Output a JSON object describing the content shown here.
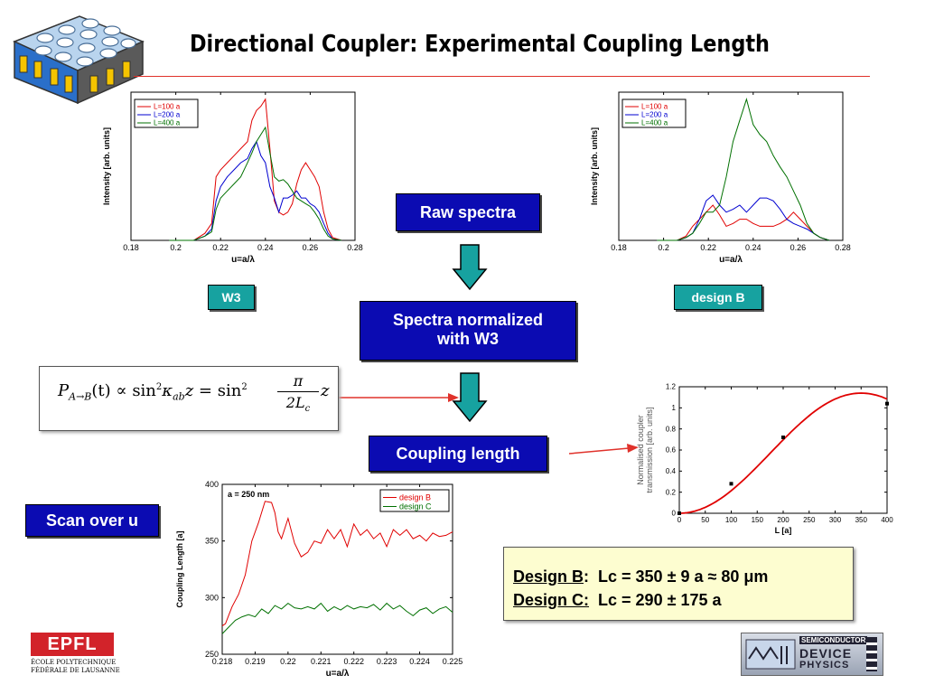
{
  "title": "Directional Coupler: Experimental Coupling Length",
  "flow": {
    "raw_spectra": "Raw spectra",
    "normalized_line1": "Spectra normalized",
    "normalized_line2": "with W3",
    "coupling_length": "Coupling length",
    "scan_over_u": "Scan over u"
  },
  "tags": {
    "w3": "W3",
    "design_b": "design B"
  },
  "formula": {
    "lhs": "P",
    "lhs_sub": "A→B",
    "t": "(t)",
    "propto": "∝",
    "sin": "sin",
    "sq": "2",
    "kappa": "κ",
    "kappa_sub": "ab",
    "z": "z",
    "eq": "=",
    "pi": "π",
    "den": "2L",
    "den_sub": "c"
  },
  "results": {
    "b_label": "Design B",
    "b_value": "Lc = 350 ± 9 a ≈ 80 μm",
    "c_label": "Design C:",
    "c_value": "Lc = 290 ± 175 a"
  },
  "logos": {
    "epfl_text1": "ÉCOLE POLYTECHNIQUE",
    "epfl_text2": "FÉDÉRALE DE LAUSANNE",
    "sdp_text1": "SEMICONDUCTOR",
    "sdp_text2": "DEVICE",
    "sdp_text3": "PHYSICS"
  },
  "colors": {
    "title_rule": "#e0322b",
    "box_blue": "#0b0bb2",
    "box_teal": "#17a2a0",
    "result_bg": "#fdfdd0"
  },
  "chart_data": [
    {
      "type": "line",
      "xlabel": "u=a/λ",
      "ylabel": "Intensity [arb. units]",
      "xlim": [
        0.18,
        0.28
      ],
      "xticks": [
        "0.18",
        "0.2",
        "0.22",
        "0.24",
        "0.26",
        "0.28"
      ],
      "legend": "top-left",
      "series": [
        {
          "name": "L=100 a",
          "color": "#e00000",
          "x": [
            0.197,
            0.208,
            0.213,
            0.216,
            0.218,
            0.22,
            0.223,
            0.226,
            0.229,
            0.232,
            0.234,
            0.236,
            0.238,
            0.24,
            0.242,
            0.244,
            0.246,
            0.248,
            0.25,
            0.252,
            0.254,
            0.256,
            0.258,
            0.26,
            0.262,
            0.264,
            0.266,
            0.268,
            0.27,
            0.274
          ],
          "y": [
            0.0,
            0.0,
            0.05,
            0.12,
            0.45,
            0.5,
            0.55,
            0.6,
            0.65,
            0.7,
            0.85,
            0.92,
            0.95,
            1.0,
            0.65,
            0.28,
            0.2,
            0.18,
            0.2,
            0.26,
            0.4,
            0.5,
            0.55,
            0.5,
            0.45,
            0.38,
            0.2,
            0.08,
            0.02,
            0.0
          ]
        },
        {
          "name": "L=200 a",
          "color": "#0000d0",
          "x": [
            0.197,
            0.208,
            0.213,
            0.216,
            0.218,
            0.22,
            0.223,
            0.226,
            0.229,
            0.232,
            0.234,
            0.236,
            0.238,
            0.24,
            0.242,
            0.244,
            0.246,
            0.248,
            0.25,
            0.252,
            0.254,
            0.256,
            0.258,
            0.26,
            0.262,
            0.264,
            0.266,
            0.268,
            0.27,
            0.274
          ],
          "y": [
            0.0,
            0.0,
            0.03,
            0.08,
            0.28,
            0.38,
            0.45,
            0.5,
            0.55,
            0.58,
            0.65,
            0.7,
            0.6,
            0.55,
            0.38,
            0.3,
            0.2,
            0.3,
            0.3,
            0.32,
            0.35,
            0.3,
            0.3,
            0.26,
            0.24,
            0.2,
            0.12,
            0.05,
            0.01,
            0.0
          ]
        },
        {
          "name": "L=400 a",
          "color": "#007000",
          "x": [
            0.197,
            0.208,
            0.213,
            0.216,
            0.218,
            0.22,
            0.223,
            0.226,
            0.229,
            0.232,
            0.234,
            0.236,
            0.238,
            0.24,
            0.242,
            0.244,
            0.246,
            0.248,
            0.25,
            0.252,
            0.254,
            0.256,
            0.258,
            0.26,
            0.262,
            0.264,
            0.266,
            0.268,
            0.27,
            0.274
          ],
          "y": [
            0.0,
            0.0,
            0.03,
            0.06,
            0.22,
            0.3,
            0.35,
            0.4,
            0.45,
            0.55,
            0.62,
            0.7,
            0.75,
            0.8,
            0.62,
            0.45,
            0.42,
            0.43,
            0.4,
            0.35,
            0.3,
            0.28,
            0.26,
            0.24,
            0.2,
            0.15,
            0.08,
            0.03,
            0.01,
            0.0
          ]
        }
      ]
    },
    {
      "type": "line",
      "xlabel": "u=a/λ",
      "ylabel": "Intensity [arb. units]",
      "xlim": [
        0.18,
        0.28
      ],
      "xticks": [
        "0.18",
        "0.2",
        "0.22",
        "0.24",
        "0.26",
        "0.28"
      ],
      "legend": "top-left",
      "series": [
        {
          "name": "L=100 a",
          "color": "#e00000",
          "x": [
            0.197,
            0.206,
            0.21,
            0.213,
            0.216,
            0.219,
            0.222,
            0.225,
            0.228,
            0.231,
            0.234,
            0.237,
            0.24,
            0.243,
            0.246,
            0.249,
            0.252,
            0.255,
            0.258,
            0.261,
            0.264,
            0.267,
            0.27,
            0.274
          ],
          "y": [
            0.0,
            0.0,
            0.03,
            0.1,
            0.15,
            0.2,
            0.25,
            0.18,
            0.1,
            0.12,
            0.15,
            0.15,
            0.12,
            0.1,
            0.1,
            0.1,
            0.12,
            0.15,
            0.2,
            0.15,
            0.1,
            0.05,
            0.02,
            0.0
          ]
        },
        {
          "name": "L=200 a",
          "color": "#0000d0",
          "x": [
            0.197,
            0.206,
            0.21,
            0.213,
            0.216,
            0.219,
            0.222,
            0.225,
            0.228,
            0.231,
            0.234,
            0.237,
            0.24,
            0.243,
            0.246,
            0.249,
            0.252,
            0.255,
            0.258,
            0.261,
            0.264,
            0.267,
            0.27,
            0.274
          ],
          "y": [
            0.0,
            0.0,
            0.02,
            0.05,
            0.15,
            0.28,
            0.32,
            0.25,
            0.2,
            0.22,
            0.25,
            0.2,
            0.25,
            0.3,
            0.3,
            0.28,
            0.22,
            0.15,
            0.12,
            0.1,
            0.08,
            0.05,
            0.02,
            0.0
          ]
        },
        {
          "name": "L=400 a",
          "color": "#007000",
          "x": [
            0.197,
            0.206,
            0.21,
            0.213,
            0.216,
            0.219,
            0.222,
            0.225,
            0.228,
            0.231,
            0.234,
            0.237,
            0.24,
            0.243,
            0.246,
            0.249,
            0.252,
            0.255,
            0.258,
            0.261,
            0.264,
            0.267,
            0.27,
            0.274
          ],
          "y": [
            0.0,
            0.0,
            0.02,
            0.05,
            0.12,
            0.2,
            0.2,
            0.25,
            0.45,
            0.7,
            0.85,
            1.0,
            0.82,
            0.75,
            0.7,
            0.6,
            0.52,
            0.45,
            0.35,
            0.25,
            0.12,
            0.05,
            0.02,
            0.0
          ]
        }
      ]
    },
    {
      "type": "line",
      "xlabel": "L [a]",
      "ylabel": "Normalised coupler transmission [arb. units]",
      "xlim": [
        0,
        400
      ],
      "ylim": [
        0,
        1.2
      ],
      "xticks": [
        "0",
        "50",
        "100",
        "150",
        "200",
        "250",
        "300",
        "350",
        "400"
      ],
      "yticks": [
        "0",
        "0.2",
        "0.4",
        "0.6",
        "0.8",
        "1",
        "1.2"
      ],
      "points": {
        "x": [
          0,
          100,
          200,
          400
        ],
        "y": [
          0.0,
          0.28,
          0.72,
          1.04
        ]
      },
      "fit": {
        "color": "#e00000",
        "Lc": 350,
        "amp": 1.14
      }
    },
    {
      "type": "line",
      "annotation": "a = 250 nm",
      "xlabel": "u=a/λ",
      "ylabel": "Coupling Length [a]",
      "xlim": [
        0.218,
        0.225
      ],
      "ylim": [
        250,
        400
      ],
      "xticks": [
        "0.218",
        "0.219",
        "0.22",
        "0.221",
        "0.222",
        "0.223",
        "0.224",
        "0.225"
      ],
      "yticks": [
        "250",
        "300",
        "350",
        "400"
      ],
      "legend": "top-right",
      "series": [
        {
          "name": "design B",
          "color": "#e00000",
          "x": [
            0.218,
            0.2181,
            0.2183,
            0.2185,
            0.2187,
            0.2189,
            0.2191,
            0.2193,
            0.2195,
            0.2196,
            0.2197,
            0.2198,
            0.22,
            0.2202,
            0.2204,
            0.2206,
            0.2208,
            0.221,
            0.2212,
            0.2214,
            0.2216,
            0.2218,
            0.222,
            0.2222,
            0.2224,
            0.2226,
            0.2228,
            0.223,
            0.2232,
            0.2234,
            0.2236,
            0.2238,
            0.224,
            0.2242,
            0.2244,
            0.2246,
            0.2248,
            0.225
          ],
          "y": [
            275,
            277,
            292,
            303,
            320,
            350,
            366,
            385,
            384,
            375,
            358,
            352,
            370,
            348,
            336,
            340,
            350,
            348,
            360,
            352,
            360,
            345,
            365,
            355,
            360,
            352,
            357,
            345,
            360,
            355,
            360,
            352,
            355,
            350,
            357,
            354,
            355,
            358
          ]
        },
        {
          "name": "design C",
          "color": "#007000",
          "x": [
            0.218,
            0.2182,
            0.2184,
            0.2186,
            0.2188,
            0.219,
            0.2192,
            0.2194,
            0.2196,
            0.2198,
            0.22,
            0.2202,
            0.2204,
            0.2206,
            0.2208,
            0.221,
            0.2212,
            0.2214,
            0.2216,
            0.2218,
            0.222,
            0.2222,
            0.2224,
            0.2226,
            0.2228,
            0.223,
            0.2232,
            0.2234,
            0.2236,
            0.2238,
            0.224,
            0.2242,
            0.2244,
            0.2246,
            0.2248,
            0.225
          ],
          "y": [
            268,
            274,
            280,
            283,
            285,
            283,
            290,
            286,
            293,
            290,
            295,
            291,
            290,
            292,
            290,
            295,
            288,
            292,
            289,
            293,
            290,
            292,
            291,
            294,
            289,
            295,
            290,
            293,
            288,
            284,
            289,
            291,
            286,
            290,
            292,
            287
          ]
        }
      ]
    }
  ]
}
